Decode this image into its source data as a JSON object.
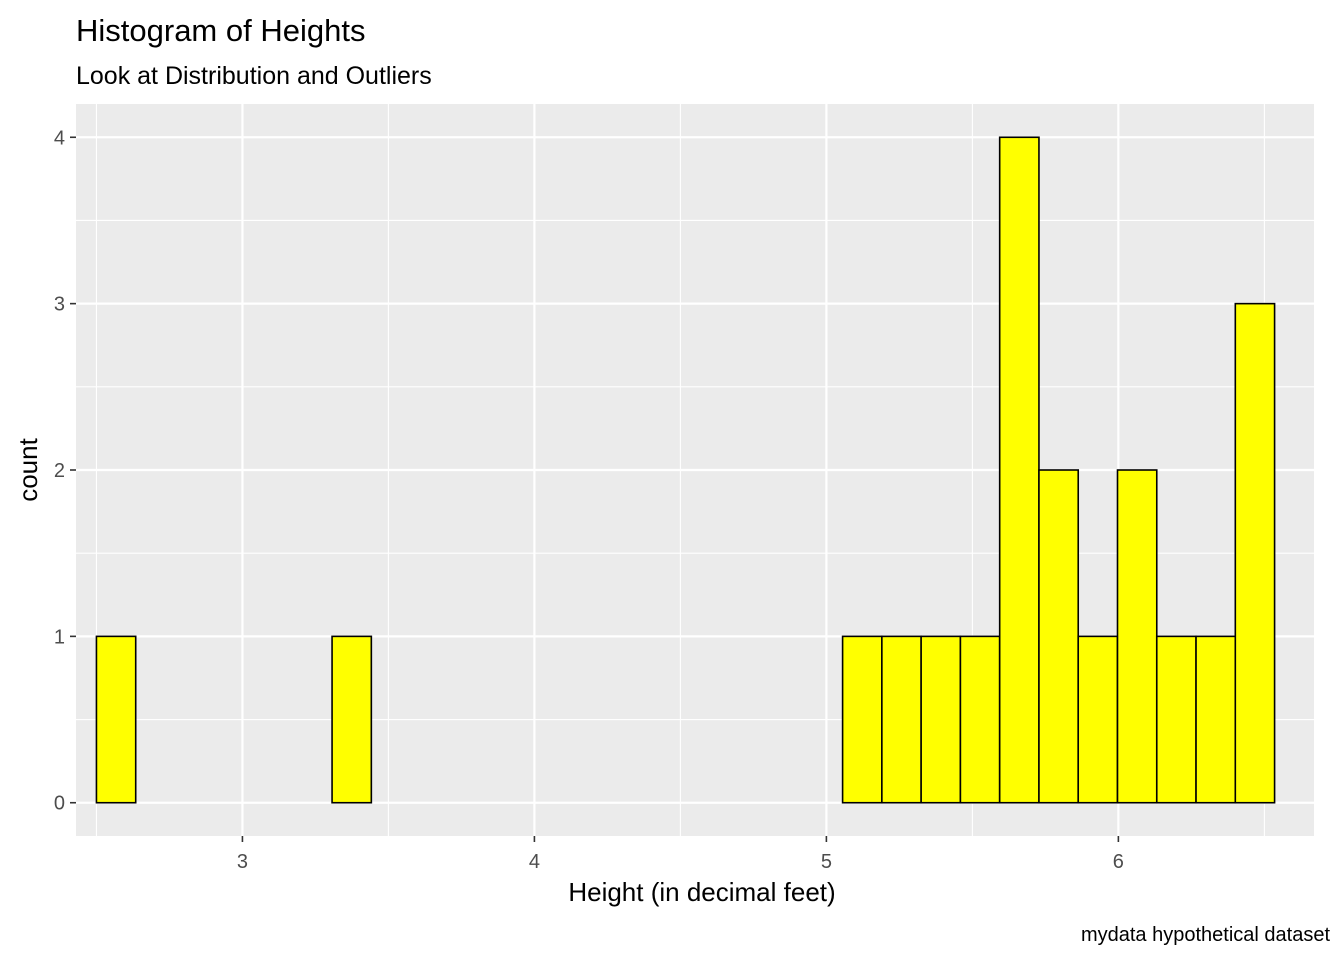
{
  "chart_data": {
    "type": "bar",
    "title": "Histogram of Heights",
    "subtitle": "Look at Distribution and Outliers",
    "xlabel": "Height (in decimal feet)",
    "ylabel": "count",
    "caption": "mydata hypothetical dataset",
    "xlim": [
      2.43,
      6.67
    ],
    "ylim": [
      -0.2,
      4.2
    ],
    "x_ticks": [
      3,
      4,
      5,
      6
    ],
    "y_ticks": [
      0,
      1,
      2,
      3,
      4
    ],
    "bin_width": 0.1345,
    "bin_start": 2.5,
    "values": [
      1,
      0,
      0,
      0,
      0,
      0,
      1,
      0,
      0,
      0,
      0,
      0,
      0,
      0,
      0,
      0,
      0,
      0,
      0,
      1,
      1,
      1,
      1,
      4,
      2,
      1,
      2,
      1,
      1,
      3
    ],
    "grid": true,
    "colors": {
      "bar_fill": "#ffff00",
      "bar_outline": "#000000",
      "panel_background": "#ebebeb",
      "grid": "#ffffff",
      "tick_text": "#4d4d4d"
    }
  }
}
